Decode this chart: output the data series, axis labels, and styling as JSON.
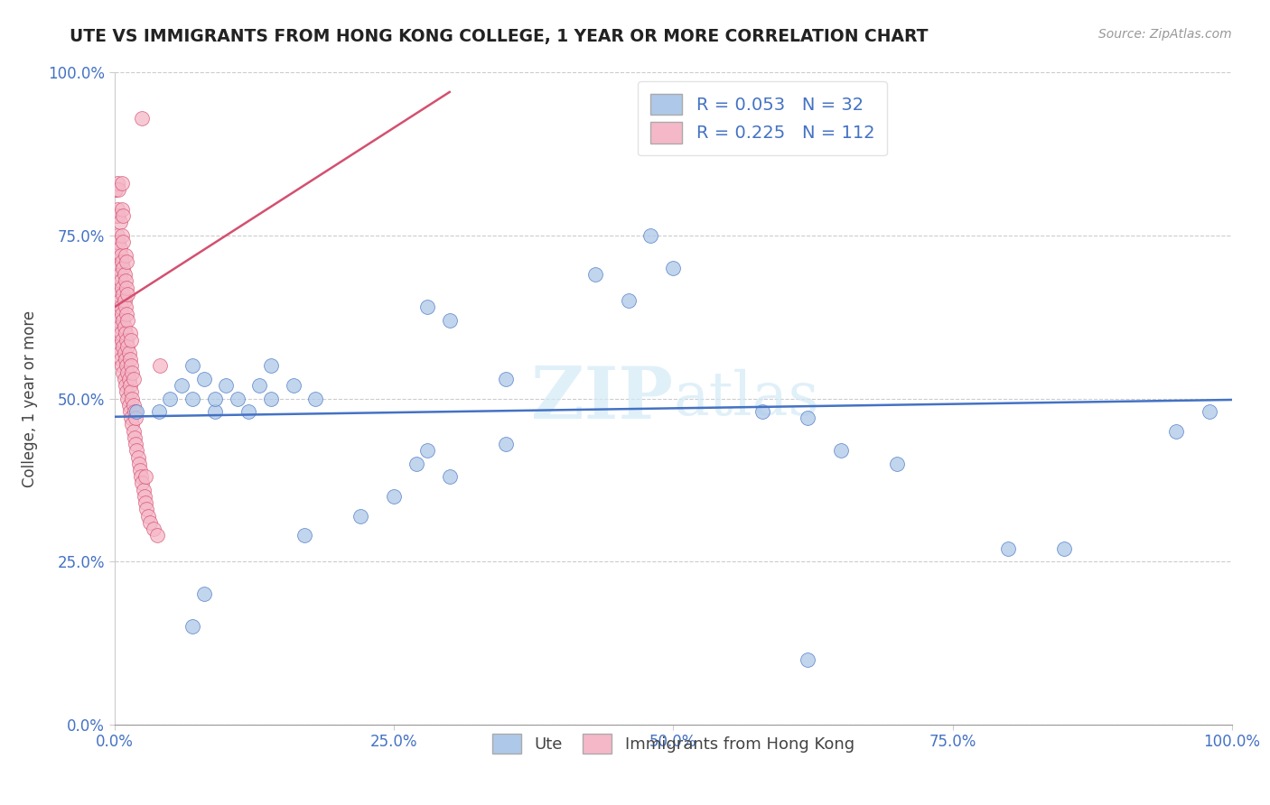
{
  "title": "UTE VS IMMIGRANTS FROM HONG KONG COLLEGE, 1 YEAR OR MORE CORRELATION CHART",
  "source_text": "Source: ZipAtlas.com",
  "ylabel": "College, 1 year or more",
  "xlim": [
    0.0,
    1.0
  ],
  "ylim": [
    0.0,
    1.0
  ],
  "xticks": [
    0.0,
    0.25,
    0.5,
    0.75,
    1.0
  ],
  "yticks": [
    0.0,
    0.25,
    0.5,
    0.75,
    1.0
  ],
  "xtick_labels": [
    "0.0%",
    "25.0%",
    "50.0%",
    "75.0%",
    "100.0%"
  ],
  "ytick_labels": [
    "0.0%",
    "25.0%",
    "50.0%",
    "75.0%",
    "100.0%"
  ],
  "legend_label1": "Ute",
  "legend_label2": "Immigrants from Hong Kong",
  "R1": 0.053,
  "N1": 32,
  "R2": 0.225,
  "N2": 112,
  "color_ute": "#adc8e8",
  "color_hk": "#f5b8c8",
  "line_color_ute": "#4472c4",
  "line_color_hk": "#d45070",
  "watermark_zip": "ZIP",
  "watermark_atlas": "atlas",
  "blue_scatter_x": [
    0.02,
    0.04,
    0.05,
    0.06,
    0.07,
    0.07,
    0.08,
    0.09,
    0.09,
    0.1,
    0.11,
    0.12,
    0.13,
    0.14,
    0.14,
    0.16,
    0.18,
    0.28,
    0.3,
    0.35,
    0.43,
    0.46,
    0.48,
    0.5,
    0.58,
    0.62,
    0.65,
    0.7,
    0.8,
    0.85,
    0.95,
    0.98
  ],
  "blue_scatter_y": [
    0.48,
    0.48,
    0.5,
    0.52,
    0.55,
    0.5,
    0.53,
    0.48,
    0.5,
    0.52,
    0.5,
    0.48,
    0.52,
    0.55,
    0.5,
    0.52,
    0.5,
    0.64,
    0.62,
    0.53,
    0.69,
    0.65,
    0.75,
    0.7,
    0.48,
    0.47,
    0.42,
    0.4,
    0.27,
    0.27,
    0.45,
    0.48
  ],
  "blue_scatter_y_extra": [
    0.15,
    0.2,
    0.29,
    0.32,
    0.35,
    0.38,
    0.4,
    0.42,
    0.43,
    0.1
  ],
  "blue_scatter_x_extra": [
    0.07,
    0.08,
    0.17,
    0.22,
    0.25,
    0.3,
    0.27,
    0.28,
    0.35,
    0.62
  ],
  "pink_scatter_x": [
    0.0,
    0.0,
    0.0,
    0.001,
    0.001,
    0.001,
    0.001,
    0.001,
    0.002,
    0.002,
    0.002,
    0.002,
    0.002,
    0.003,
    0.003,
    0.003,
    0.003,
    0.003,
    0.003,
    0.003,
    0.004,
    0.004,
    0.004,
    0.004,
    0.004,
    0.004,
    0.004,
    0.005,
    0.005,
    0.005,
    0.005,
    0.005,
    0.005,
    0.006,
    0.006,
    0.006,
    0.006,
    0.006,
    0.007,
    0.007,
    0.007,
    0.007,
    0.007,
    0.007,
    0.007,
    0.007,
    0.008,
    0.008,
    0.008,
    0.008,
    0.008,
    0.008,
    0.008,
    0.009,
    0.009,
    0.009,
    0.009,
    0.009,
    0.01,
    0.01,
    0.01,
    0.01,
    0.01,
    0.01,
    0.011,
    0.011,
    0.011,
    0.011,
    0.011,
    0.011,
    0.012,
    0.012,
    0.012,
    0.012,
    0.012,
    0.013,
    0.013,
    0.013,
    0.014,
    0.014,
    0.014,
    0.014,
    0.015,
    0.015,
    0.015,
    0.015,
    0.016,
    0.016,
    0.016,
    0.017,
    0.017,
    0.017,
    0.018,
    0.018,
    0.019,
    0.019,
    0.02,
    0.021,
    0.022,
    0.023,
    0.024,
    0.025,
    0.026,
    0.027,
    0.028,
    0.028,
    0.029,
    0.03,
    0.032,
    0.035,
    0.038,
    0.041
  ],
  "pink_scatter_y": [
    0.72,
    0.78,
    0.82,
    0.65,
    0.7,
    0.74,
    0.78,
    0.82,
    0.62,
    0.66,
    0.7,
    0.74,
    0.78,
    0.6,
    0.63,
    0.67,
    0.71,
    0.75,
    0.79,
    0.83,
    0.58,
    0.62,
    0.66,
    0.7,
    0.74,
    0.78,
    0.82,
    0.57,
    0.61,
    0.65,
    0.69,
    0.73,
    0.77,
    0.56,
    0.6,
    0.64,
    0.68,
    0.72,
    0.55,
    0.59,
    0.63,
    0.67,
    0.71,
    0.75,
    0.79,
    0.83,
    0.54,
    0.58,
    0.62,
    0.66,
    0.7,
    0.74,
    0.78,
    0.53,
    0.57,
    0.61,
    0.65,
    0.69,
    0.52,
    0.56,
    0.6,
    0.64,
    0.68,
    0.72,
    0.51,
    0.55,
    0.59,
    0.63,
    0.67,
    0.71,
    0.5,
    0.54,
    0.58,
    0.62,
    0.66,
    0.49,
    0.53,
    0.57,
    0.48,
    0.52,
    0.56,
    0.6,
    0.47,
    0.51,
    0.55,
    0.59,
    0.46,
    0.5,
    0.54,
    0.45,
    0.49,
    0.53,
    0.44,
    0.48,
    0.43,
    0.47,
    0.42,
    0.41,
    0.4,
    0.39,
    0.38,
    0.37,
    0.36,
    0.35,
    0.34,
    0.38,
    0.33,
    0.32,
    0.31,
    0.3,
    0.29,
    0.55
  ],
  "pink_outlier_x": [
    0.025
  ],
  "pink_outlier_y": [
    0.93
  ],
  "blue_line_x0": 0.0,
  "blue_line_x1": 1.0,
  "blue_line_y0": 0.472,
  "blue_line_y1": 0.498,
  "pink_line_x0": 0.0,
  "pink_line_x1": 0.3,
  "pink_line_y0": 0.64,
  "pink_line_y1": 0.97
}
